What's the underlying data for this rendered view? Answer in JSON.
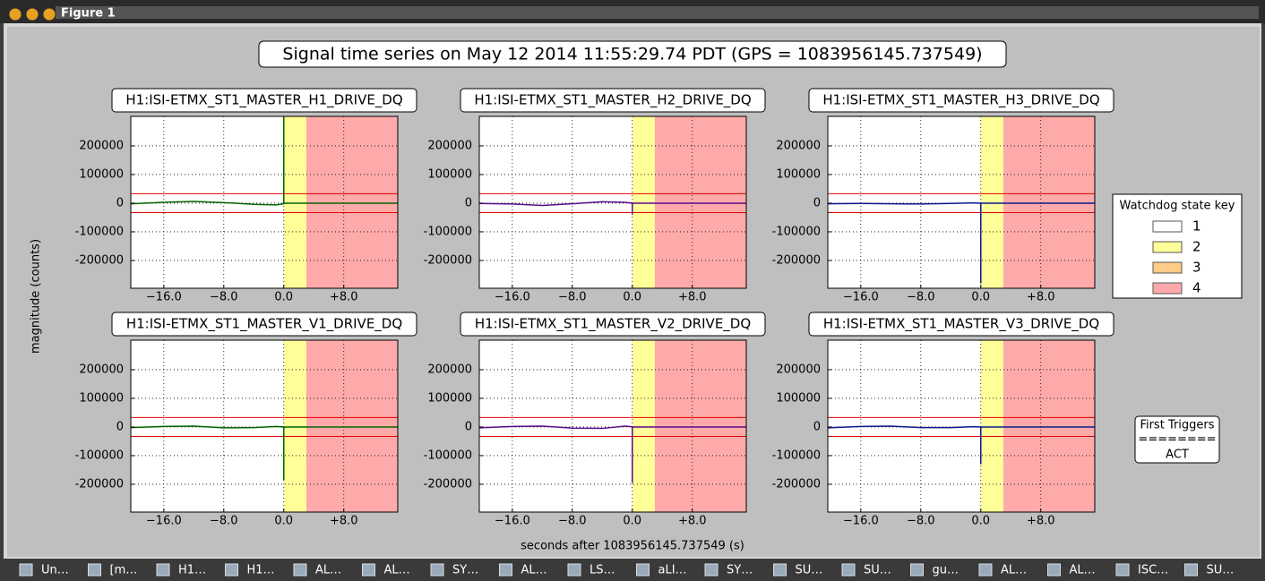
{
  "window": {
    "title": "Figure 1"
  },
  "figure": {
    "title": "Signal time series on May 12 2014 11:55:29.74 PDT (GPS = 1083956145.737549)",
    "xlabel": "seconds after 1083956145.737549 (s)",
    "ylabel": "magnitude (counts)",
    "legend": {
      "title": "Watchdog state key",
      "entries": [
        {
          "label": "1",
          "color": "#ffffff"
        },
        {
          "label": "2",
          "color": "#ffff99"
        },
        {
          "label": "3",
          "color": "#ffcc88"
        },
        {
          "label": "4",
          "color": "#ffaaaa"
        }
      ]
    },
    "triggers": {
      "title": "First Triggers",
      "rule": "========",
      "value": "ACT"
    }
  },
  "chart_data": [
    {
      "type": "line",
      "title": "H1:ISI-ETMX_ST1_MASTER_H1_DRIVE_DQ",
      "x": [
        -20.4,
        -16,
        -12,
        -8,
        -4,
        -1,
        0,
        0,
        0,
        4,
        8,
        12,
        15.2
      ],
      "series": [
        {
          "color": "#006400",
          "values": [
            -2000,
            3000,
            6000,
            2000,
            -4000,
            -6000,
            -2000,
            303000,
            0,
            0,
            0,
            0,
            0
          ]
        }
      ],
      "xlim": [
        -20.4,
        15.2
      ],
      "ylim": [
        -297000,
        303000
      ],
      "xticks": [
        {
          "value": -16,
          "label": "−16.0"
        },
        {
          "value": -8,
          "label": "−8.0"
        },
        {
          "value": 0,
          "label": "0.0"
        },
        {
          "value": 8,
          "label": "+8.0"
        }
      ],
      "yticks": [
        -200000,
        -100000,
        0,
        100000,
        200000
      ],
      "grid": true,
      "spans": [
        {
          "from": 0,
          "to": 3,
          "color": "#ffff99"
        },
        {
          "from": 3,
          "to": 15.2,
          "color": "#ffaaaa"
        }
      ],
      "thresholds": [
        33000,
        -33000
      ]
    },
    {
      "type": "line",
      "title": "H1:ISI-ETMX_ST1_MASTER_H2_DRIVE_DQ",
      "x": [
        -20.4,
        -16,
        -12,
        -8,
        -4,
        -1,
        0,
        0,
        0,
        4,
        8,
        12,
        15.2
      ],
      "series": [
        {
          "color": "#5a0a8a",
          "values": [
            -1000,
            -3000,
            -8000,
            -2000,
            5000,
            3000,
            0,
            -40000,
            0,
            0,
            0,
            0,
            0
          ]
        }
      ],
      "xlim": [
        -20.4,
        15.2
      ],
      "ylim": [
        -297000,
        303000
      ],
      "xticks": [
        {
          "value": -16,
          "label": "−16.0"
        },
        {
          "value": -8,
          "label": "−8.0"
        },
        {
          "value": 0,
          "label": "0.0"
        },
        {
          "value": 8,
          "label": "+8.0"
        }
      ],
      "yticks": [
        -200000,
        -100000,
        0,
        100000,
        200000
      ],
      "grid": true,
      "spans": [
        {
          "from": 0,
          "to": 3,
          "color": "#ffff99"
        },
        {
          "from": 3,
          "to": 15.2,
          "color": "#ffaaaa"
        }
      ],
      "thresholds": [
        33000,
        -33000
      ]
    },
    {
      "type": "line",
      "title": "H1:ISI-ETMX_ST1_MASTER_H3_DRIVE_DQ",
      "x": [
        -20.4,
        -16,
        -12,
        -8,
        -4,
        -1,
        0,
        0,
        0,
        4,
        8,
        12,
        15.2
      ],
      "series": [
        {
          "color": "#0a1a8a",
          "values": [
            -2000,
            -1000,
            -2000,
            -3000,
            -1000,
            1000,
            0,
            -280000,
            0,
            0,
            0,
            0,
            0
          ]
        }
      ],
      "xlim": [
        -20.4,
        15.2
      ],
      "ylim": [
        -297000,
        303000
      ],
      "xticks": [
        {
          "value": -16,
          "label": "−16.0"
        },
        {
          "value": -8,
          "label": "−8.0"
        },
        {
          "value": 0,
          "label": "0.0"
        },
        {
          "value": 8,
          "label": "+8.0"
        }
      ],
      "yticks": [
        -200000,
        -100000,
        0,
        100000,
        200000
      ],
      "grid": true,
      "spans": [
        {
          "from": 0,
          "to": 3,
          "color": "#ffff99"
        },
        {
          "from": 3,
          "to": 15.2,
          "color": "#ffaaaa"
        }
      ],
      "thresholds": [
        33000,
        -33000
      ]
    },
    {
      "type": "line",
      "title": "H1:ISI-ETMX_ST1_MASTER_V1_DRIVE_DQ",
      "x": [
        -20.4,
        -16,
        -12,
        -8,
        -4,
        -1,
        0,
        0,
        0,
        4,
        8,
        12,
        15.2
      ],
      "series": [
        {
          "color": "#006400",
          "values": [
            -2000,
            2000,
            3000,
            -3000,
            -2000,
            2000,
            0,
            -185000,
            0,
            0,
            0,
            0,
            0
          ]
        }
      ],
      "xlim": [
        -20.4,
        15.2
      ],
      "ylim": [
        -297000,
        303000
      ],
      "xticks": [
        {
          "value": -16,
          "label": "−16.0"
        },
        {
          "value": -8,
          "label": "−8.0"
        },
        {
          "value": 0,
          "label": "0.0"
        },
        {
          "value": 8,
          "label": "+8.0"
        }
      ],
      "yticks": [
        -200000,
        -100000,
        0,
        100000,
        200000
      ],
      "grid": true,
      "spans": [
        {
          "from": 0,
          "to": 3,
          "color": "#ffff99"
        },
        {
          "from": 3,
          "to": 15.2,
          "color": "#ffaaaa"
        }
      ],
      "thresholds": [
        33000,
        -33000
      ]
    },
    {
      "type": "line",
      "title": "H1:ISI-ETMX_ST1_MASTER_V2_DRIVE_DQ",
      "x": [
        -20.4,
        -16,
        -12,
        -8,
        -4,
        -1,
        0,
        0,
        0,
        4,
        8,
        12,
        15.2
      ],
      "series": [
        {
          "color": "#5a0a8a",
          "values": [
            -3000,
            2000,
            3000,
            -4000,
            -5000,
            3000,
            1000,
            -195000,
            0,
            0,
            0,
            0,
            0
          ]
        }
      ],
      "xlim": [
        -20.4,
        15.2
      ],
      "ylim": [
        -297000,
        303000
      ],
      "xticks": [
        {
          "value": -16,
          "label": "−16.0"
        },
        {
          "value": -8,
          "label": "−8.0"
        },
        {
          "value": 0,
          "label": "0.0"
        },
        {
          "value": 8,
          "label": "+8.0"
        }
      ],
      "yticks": [
        -200000,
        -100000,
        0,
        100000,
        200000
      ],
      "grid": true,
      "spans": [
        {
          "from": 0,
          "to": 3,
          "color": "#ffff99"
        },
        {
          "from": 3,
          "to": 15.2,
          "color": "#ffaaaa"
        }
      ],
      "thresholds": [
        33000,
        -33000
      ]
    },
    {
      "type": "line",
      "title": "H1:ISI-ETMX_ST1_MASTER_V3_DRIVE_DQ",
      "x": [
        -20.4,
        -16,
        -12,
        -8,
        -4,
        -1,
        0,
        0,
        0,
        4,
        8,
        12,
        15.2
      ],
      "series": [
        {
          "color": "#0a1a8a",
          "values": [
            -3000,
            2000,
            3000,
            -2000,
            -2000,
            1000,
            0,
            -130000,
            0,
            0,
            0,
            0,
            0
          ]
        }
      ],
      "xlim": [
        -20.4,
        15.2
      ],
      "ylim": [
        -297000,
        303000
      ],
      "xticks": [
        {
          "value": -16,
          "label": "−16.0"
        },
        {
          "value": -8,
          "label": "−8.0"
        },
        {
          "value": 0,
          "label": "0.0"
        },
        {
          "value": 8,
          "label": "+8.0"
        }
      ],
      "yticks": [
        -200000,
        -100000,
        0,
        100000,
        200000
      ],
      "grid": true,
      "spans": [
        {
          "from": 0,
          "to": 3,
          "color": "#ffff99"
        },
        {
          "from": 3,
          "to": 15.2,
          "color": "#ffaaaa"
        }
      ],
      "thresholds": [
        33000,
        -33000
      ]
    }
  ],
  "taskbar": {
    "items": [
      "Un…",
      "[m…",
      "H1…",
      "H1…",
      "AL…",
      "AL…",
      "SY…",
      "AL…",
      "LS…",
      "aLI…",
      "SY…",
      "SU…",
      "SU…",
      "gu…",
      "AL…",
      "AL…",
      "ISC…",
      "SU…"
    ]
  }
}
